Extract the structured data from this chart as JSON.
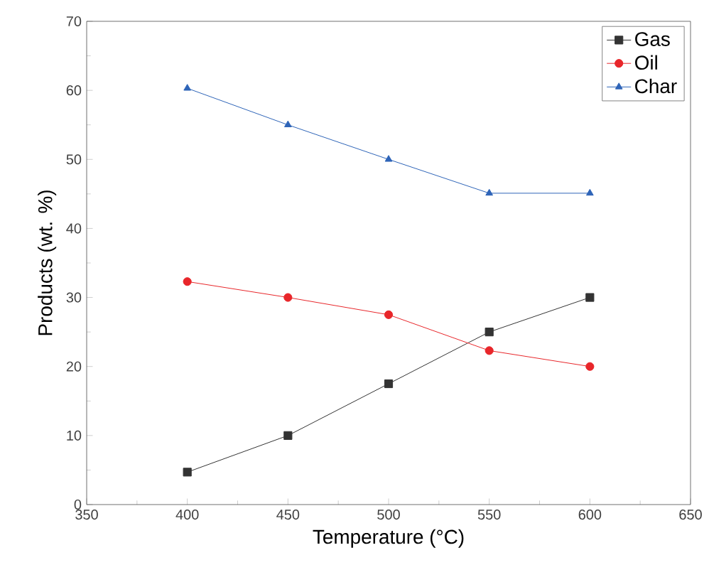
{
  "chart_data": {
    "type": "line",
    "xlabel": "Temperature (°C)",
    "ylabel": "Products (wt. %)",
    "x": [
      400,
      450,
      500,
      550,
      600
    ],
    "series": [
      {
        "name": "Gas",
        "color": "#333333",
        "marker": "square",
        "values": [
          4.7,
          10,
          17.5,
          25,
          30
        ]
      },
      {
        "name": "Oil",
        "color": "#e8262a",
        "marker": "circle",
        "values": [
          32.3,
          30,
          27.5,
          22.3,
          20
        ]
      },
      {
        "name": "Char",
        "color": "#2e64b8",
        "marker": "triangle",
        "values": [
          60.3,
          55,
          50,
          45.1,
          45.1
        ]
      }
    ],
    "xlim": [
      350,
      650
    ],
    "xticks": [
      350,
      400,
      450,
      500,
      550,
      600,
      650
    ],
    "ylim": [
      0,
      70
    ],
    "yticks": [
      0,
      10,
      20,
      30,
      40,
      50,
      60,
      70
    ],
    "legend": "top right",
    "grid": false,
    "line_style": "solid"
  }
}
